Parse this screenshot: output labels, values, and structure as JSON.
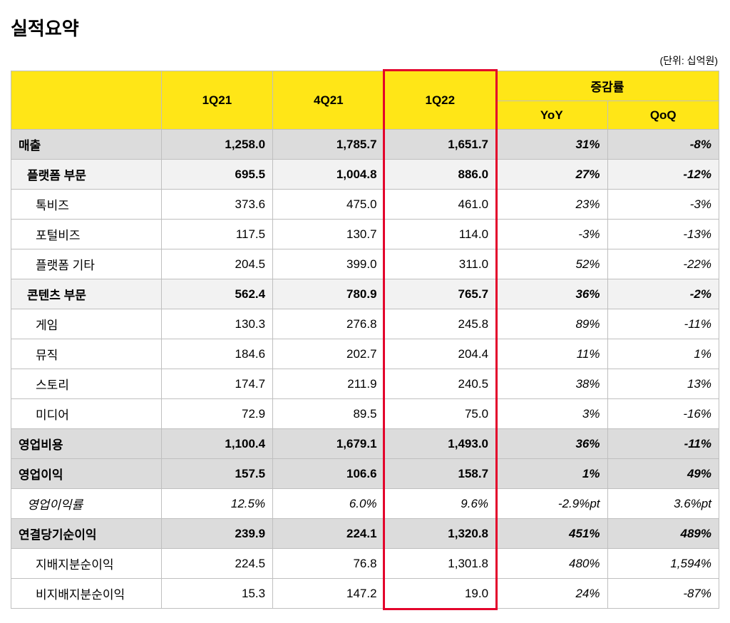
{
  "title": "실적요약",
  "unit_note": "(단위: 십억원)",
  "table": {
    "header": {
      "q1": "1Q21",
      "q2": "4Q21",
      "q3": "1Q22",
      "change_group": "증감률",
      "yoy": "YoY",
      "qoq": "QoQ"
    },
    "highlight_column_index": 3,
    "colors": {
      "header_bg": "#ffe617",
      "bold_row_bg": "#dcdcdc",
      "section_row_bg": "#f2f2f2",
      "border": "#bfbfbf",
      "highlight_border": "#e3002b",
      "text": "#000000",
      "background": "#ffffff"
    },
    "font": {
      "title_size_pt": 20,
      "cell_size_pt": 13,
      "family": "Malgun Gothic"
    },
    "rows": [
      {
        "label": "매출",
        "v": [
          "1,258.0",
          "1,785.7",
          "1,651.7",
          "31%",
          "-8%"
        ],
        "type": "bold",
        "indent": 0
      },
      {
        "label": "플랫폼 부문",
        "v": [
          "695.5",
          "1,004.8",
          "886.0",
          "27%",
          "-12%"
        ],
        "type": "section",
        "indent": 1
      },
      {
        "label": "톡비즈",
        "v": [
          "373.6",
          "475.0",
          "461.0",
          "23%",
          "-3%"
        ],
        "type": "plain",
        "indent": 2
      },
      {
        "label": "포털비즈",
        "v": [
          "117.5",
          "130.7",
          "114.0",
          "-3%",
          "-13%"
        ],
        "type": "plain",
        "indent": 2
      },
      {
        "label": "플랫폼 기타",
        "v": [
          "204.5",
          "399.0",
          "311.0",
          "52%",
          "-22%"
        ],
        "type": "plain",
        "indent": 2
      },
      {
        "label": "콘텐츠 부문",
        "v": [
          "562.4",
          "780.9",
          "765.7",
          "36%",
          "-2%"
        ],
        "type": "section",
        "indent": 1
      },
      {
        "label": "게임",
        "v": [
          "130.3",
          "276.8",
          "245.8",
          "89%",
          "-11%"
        ],
        "type": "plain",
        "indent": 2
      },
      {
        "label": "뮤직",
        "v": [
          "184.6",
          "202.7",
          "204.4",
          "11%",
          "1%"
        ],
        "type": "plain",
        "indent": 2
      },
      {
        "label": "스토리",
        "v": [
          "174.7",
          "211.9",
          "240.5",
          "38%",
          "13%"
        ],
        "type": "plain",
        "indent": 2
      },
      {
        "label": "미디어",
        "v": [
          "72.9",
          "89.5",
          "75.0",
          "3%",
          "-16%"
        ],
        "type": "plain",
        "indent": 2
      },
      {
        "label": "영업비용",
        "v": [
          "1,100.4",
          "1,679.1",
          "1,493.0",
          "36%",
          "-11%"
        ],
        "type": "bold",
        "indent": 0
      },
      {
        "label": "영업이익",
        "v": [
          "157.5",
          "106.6",
          "158.7",
          "1%",
          "49%"
        ],
        "type": "bold",
        "indent": 0
      },
      {
        "label": "영업이익률",
        "v": [
          "12.5%",
          "6.0%",
          "9.6%",
          "-2.9%pt",
          "3.6%pt"
        ],
        "type": "italic",
        "indent": 1
      },
      {
        "label": "연결당기순이익",
        "v": [
          "239.9",
          "224.1",
          "1,320.8",
          "451%",
          "489%"
        ],
        "type": "bold",
        "indent": 0
      },
      {
        "label": "지배지분순이익",
        "v": [
          "224.5",
          "76.8",
          "1,301.8",
          "480%",
          "1,594%"
        ],
        "type": "plain",
        "indent": 2
      },
      {
        "label": "비지배지분순이익",
        "v": [
          "15.3",
          "147.2",
          "19.0",
          "24%",
          "-87%"
        ],
        "type": "plain",
        "indent": 2
      }
    ]
  }
}
